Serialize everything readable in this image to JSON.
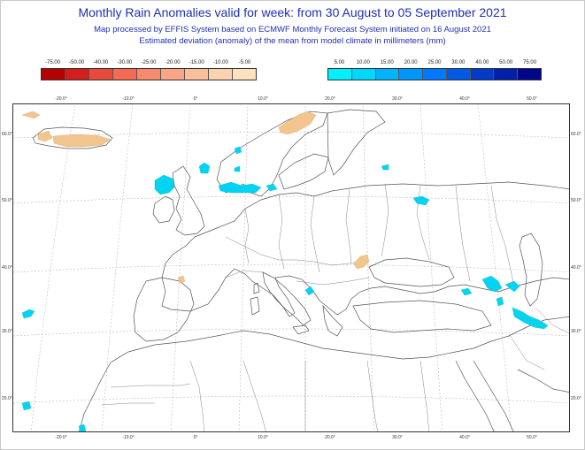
{
  "title": "Monthly Rain Anomalies valid for week: from 30 August to 05 September 2021",
  "subtitle1": "Map processed by EFFIS System based on ECMWF Monthly Forecast System initiated on 16 August 2021",
  "subtitle2": "Estimated deviation (anomaly) of the mean from model climate in millimeters (mm)",
  "legend_negative": {
    "labels": [
      "-75.00",
      "-50.00",
      "-40.00",
      "-30.00",
      "-25.00",
      "-20.00",
      "-15.00",
      "-10.00",
      "-5.00"
    ],
    "colors": [
      "#b40000",
      "#d41e1e",
      "#ea4a3c",
      "#f56a52",
      "#f78a6c",
      "#f9a586",
      "#fbbf9c",
      "#fcd3b0",
      "#fde2bd"
    ]
  },
  "legend_positive": {
    "labels": [
      "5.00",
      "10.00",
      "15.00",
      "20.00",
      "25.00",
      "30.00",
      "40.00",
      "50.00",
      "75.00"
    ],
    "colors": [
      "#00f0ff",
      "#00d8ff",
      "#00b4ff",
      "#0096ff",
      "#0078ff",
      "#005ae6",
      "#003cc8",
      "#0020aa",
      "#00068a"
    ]
  },
  "lon_ticks": [
    "-20.0°",
    "-10.0°",
    "0°",
    "10.0°",
    "20.0°",
    "30.0°",
    "40.0°",
    "50.0°"
  ],
  "lat_ticks": [
    "60.0°",
    "50.0°",
    "40.0°",
    "30.0°",
    "20.0°"
  ],
  "colors": {
    "title": "#1f2fb4",
    "dry_anomaly": "#f3c58e",
    "wet_anomaly": "#00d4f0",
    "coastline": "#555555",
    "grid": "#aaaaaa"
  }
}
